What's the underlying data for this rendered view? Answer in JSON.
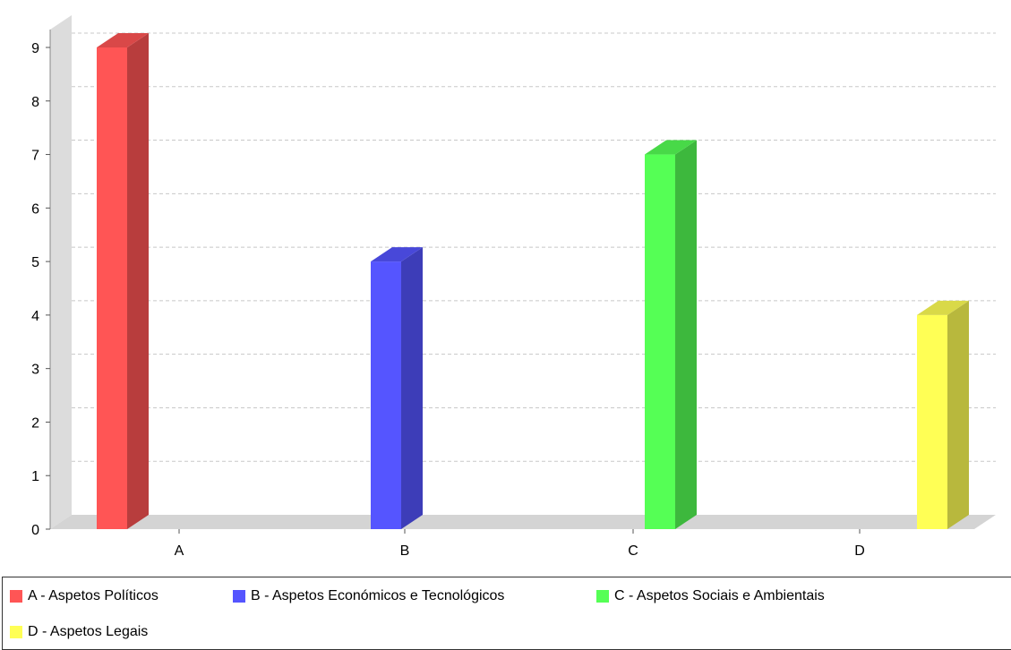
{
  "chart_data": {
    "type": "bar",
    "categories": [
      "A",
      "B",
      "C",
      "D"
    ],
    "series": [
      {
        "name": "A -  Aspetos Políticos",
        "color": "#ff5555",
        "values": [
          9,
          null,
          null,
          null
        ]
      },
      {
        "name": "B - Aspetos Económicos e Tecnológicos",
        "color": "#5555ff",
        "values": [
          null,
          5,
          null,
          null
        ]
      },
      {
        "name": "C - Aspetos Sociais e Ambientais",
        "color": "#55ff55",
        "values": [
          null,
          null,
          7,
          null
        ]
      },
      {
        "name": "D - Aspetos Legais",
        "color": "#ffff55",
        "values": [
          null,
          null,
          null,
          4
        ]
      }
    ],
    "ylim": [
      0,
      9
    ],
    "yticks": [
      "0",
      "1",
      "2",
      "3",
      "4",
      "5",
      "6",
      "7",
      "8",
      "9"
    ],
    "grid": true,
    "legend_position": "bottom",
    "title": "",
    "xlabel": "",
    "ylabel": ""
  }
}
